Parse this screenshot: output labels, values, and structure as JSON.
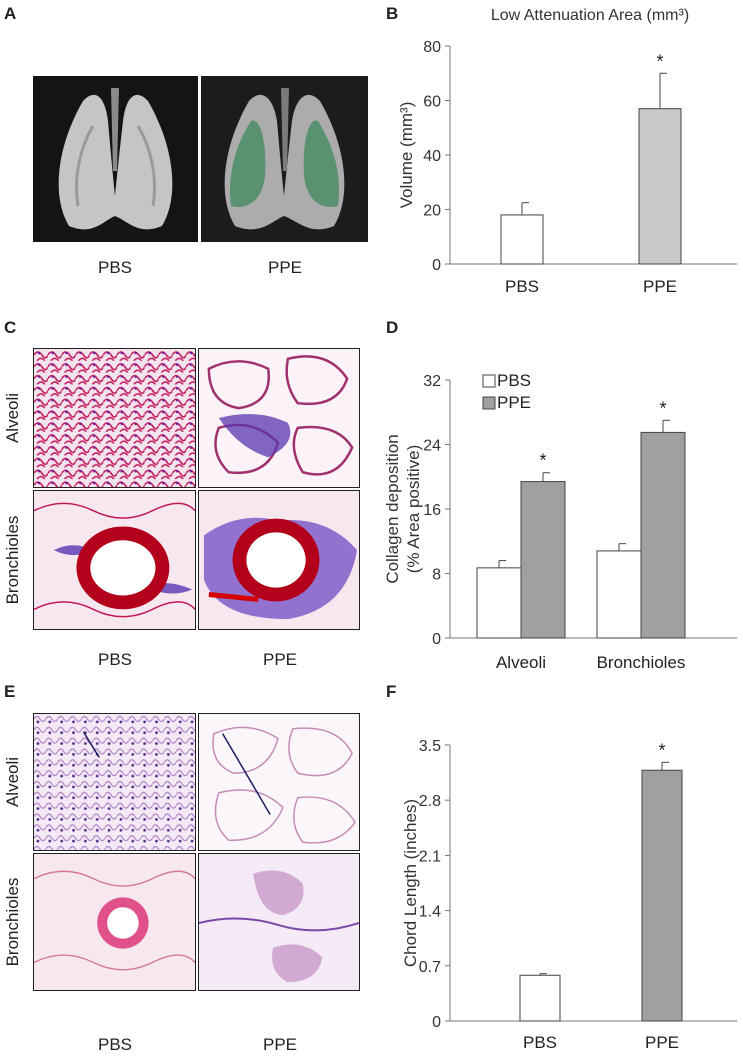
{
  "panel_letters": {
    "a": "A",
    "b": "B",
    "c": "C",
    "d": "D",
    "e": "E",
    "f": "F"
  },
  "panel_a": {
    "left_label": "PBS",
    "right_label": "PPE"
  },
  "panel_c": {
    "row_labels": [
      "Alveoli",
      "Bronchioles"
    ],
    "col_labels": [
      "PBS",
      "PPE"
    ]
  },
  "panel_e": {
    "row_labels": [
      "Alveoli",
      "Bronchioles"
    ],
    "col_labels": [
      "PBS",
      "PPE"
    ]
  },
  "colors": {
    "white_bar": "#ffffff",
    "light_grey_bar": "#c8c8c8",
    "grey_bar": "#a0a0a0",
    "lung_green": "#3f8a5e",
    "stain_red": "#c8102e",
    "stain_blue": "#4b2aa8"
  },
  "chart_data": [
    {
      "id": "B",
      "type": "bar",
      "title": "Low Attenuation Area (mm³)",
      "ylabel": "Volume (mm³)",
      "ylim": [
        0,
        80
      ],
      "yticks": [
        0,
        20,
        40,
        60,
        80
      ],
      "categories": [
        "PBS",
        "PPE"
      ],
      "values": [
        18,
        57
      ],
      "errors": [
        4.5,
        13
      ],
      "significance": [
        "",
        "*"
      ],
      "bar_colors": [
        "#ffffff",
        "#c8c8c8"
      ]
    },
    {
      "id": "D",
      "type": "bar",
      "ylabel_lines": [
        "Collagen deposition",
        "(% Area positive)"
      ],
      "ylim": [
        0,
        32
      ],
      "yticks": [
        0,
        8,
        16,
        24,
        32
      ],
      "categories": [
        "Alveoli",
        "Bronchioles"
      ],
      "series": [
        {
          "name": "PBS",
          "values": [
            8.7,
            10.8
          ],
          "errors": [
            0.9,
            0.9
          ],
          "color": "#ffffff",
          "significance": [
            "",
            ""
          ]
        },
        {
          "name": "PPE",
          "values": [
            19.4,
            25.5
          ],
          "errors": [
            1.1,
            1.5
          ],
          "color": "#a0a0a0",
          "significance": [
            "*",
            "*"
          ]
        }
      ],
      "legend": "top-left"
    },
    {
      "id": "F",
      "type": "bar",
      "ylabel": "Chord Length (inches)",
      "ylim": [
        0,
        3.5
      ],
      "yticks": [
        "0",
        "0.7",
        "1.4",
        "2.1",
        "2.8",
        "3.5"
      ],
      "categories": [
        "PBS",
        "PPE"
      ],
      "values": [
        0.58,
        3.18
      ],
      "errors": [
        0.02,
        0.1
      ],
      "significance": [
        "",
        "*"
      ],
      "bar_colors": [
        "#ffffff",
        "#a0a0a0"
      ]
    }
  ]
}
